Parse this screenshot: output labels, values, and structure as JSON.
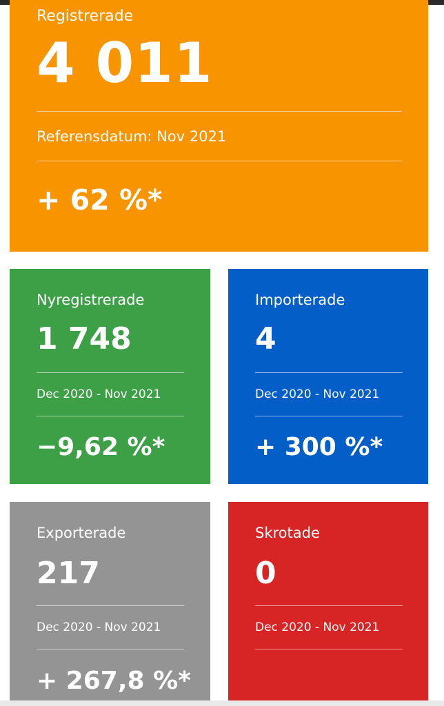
{
  "colors": {
    "registrerade": "#f79400",
    "nyregistrerade": "#3da047",
    "importerade": "#045ec8",
    "exporterade": "#949494",
    "skrotade": "#d72424"
  },
  "registrerade": {
    "label": "Registrerade",
    "value": "4 011",
    "reference": "Referensdatum: Nov 2021",
    "change": "+ 62 %*"
  },
  "nyregistrerade": {
    "label": "Nyregistrerade",
    "value": "1 748",
    "period": "Dec 2020 - Nov 2021",
    "change": "−9,62 %*"
  },
  "importerade": {
    "label": "Importerade",
    "value": "4",
    "period": "Dec 2020 - Nov 2021",
    "change": "+ 300 %*"
  },
  "exporterade": {
    "label": "Exporterade",
    "value": "217",
    "period": "Dec 2020 - Nov 2021",
    "change": "+ 267,8 %*"
  },
  "skrotade": {
    "label": "Skrotade",
    "value": "0",
    "period": "Dec 2020 - Nov 2021",
    "change": ""
  }
}
